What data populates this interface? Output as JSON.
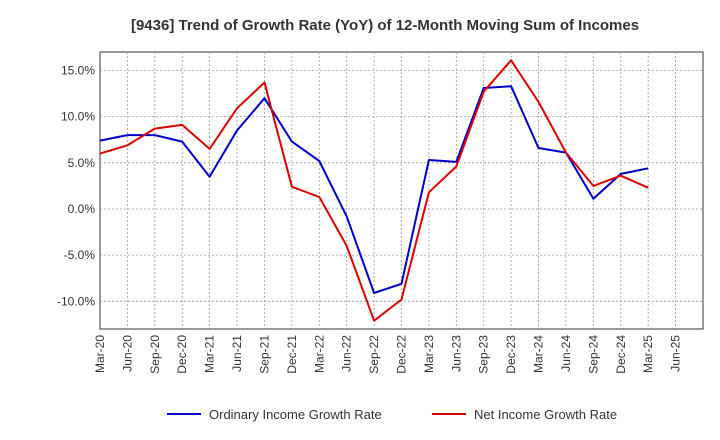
{
  "chart_data": {
    "type": "line",
    "title": "[9436]  Trend of Growth Rate (YoY) of 12-Month Moving Sum of Incomes",
    "xlabel": "",
    "ylabel": "",
    "ylim": [
      -13,
      17
    ],
    "yticks": [
      15,
      10,
      5,
      0,
      -5,
      -10
    ],
    "ytick_labels": [
      "15.0%",
      "10.0%",
      "5.0%",
      "0.0%",
      "-5.0%",
      "-10.0%"
    ],
    "x_tick_labels": [
      "Mar-20",
      "Jun-20",
      "Sep-20",
      "Dec-20",
      "Mar-21",
      "Jun-21",
      "Sep-21",
      "Dec-21",
      "Mar-22",
      "Jun-22",
      "Sep-22",
      "Dec-22",
      "Mar-23",
      "Jun-23",
      "Sep-23",
      "Dec-23",
      "Mar-24",
      "Jun-24",
      "Sep-24",
      "Dec-24",
      "Mar-25",
      "Jun-25"
    ],
    "grid": true,
    "legend_position": "bottom",
    "series": [
      {
        "name": "Ordinary Income Growth Rate",
        "color": "#0000cc",
        "values": [
          7.4,
          8.0,
          8.0,
          7.3,
          3.5,
          8.5,
          12.0,
          7.3,
          5.2,
          -0.8,
          -9.1,
          -8.1,
          5.3,
          5.1,
          13.1,
          13.3,
          6.6,
          6.1,
          1.1,
          3.8,
          4.4
        ]
      },
      {
        "name": "Net Income Growth Rate",
        "color": "#dd0000",
        "values": [
          6.0,
          6.9,
          8.7,
          9.1,
          6.5,
          10.9,
          13.7,
          2.4,
          1.3,
          -4.0,
          -12.1,
          -9.8,
          1.8,
          4.6,
          12.7,
          16.1,
          11.6,
          6.1,
          2.5,
          3.6,
          2.3
        ]
      }
    ]
  }
}
